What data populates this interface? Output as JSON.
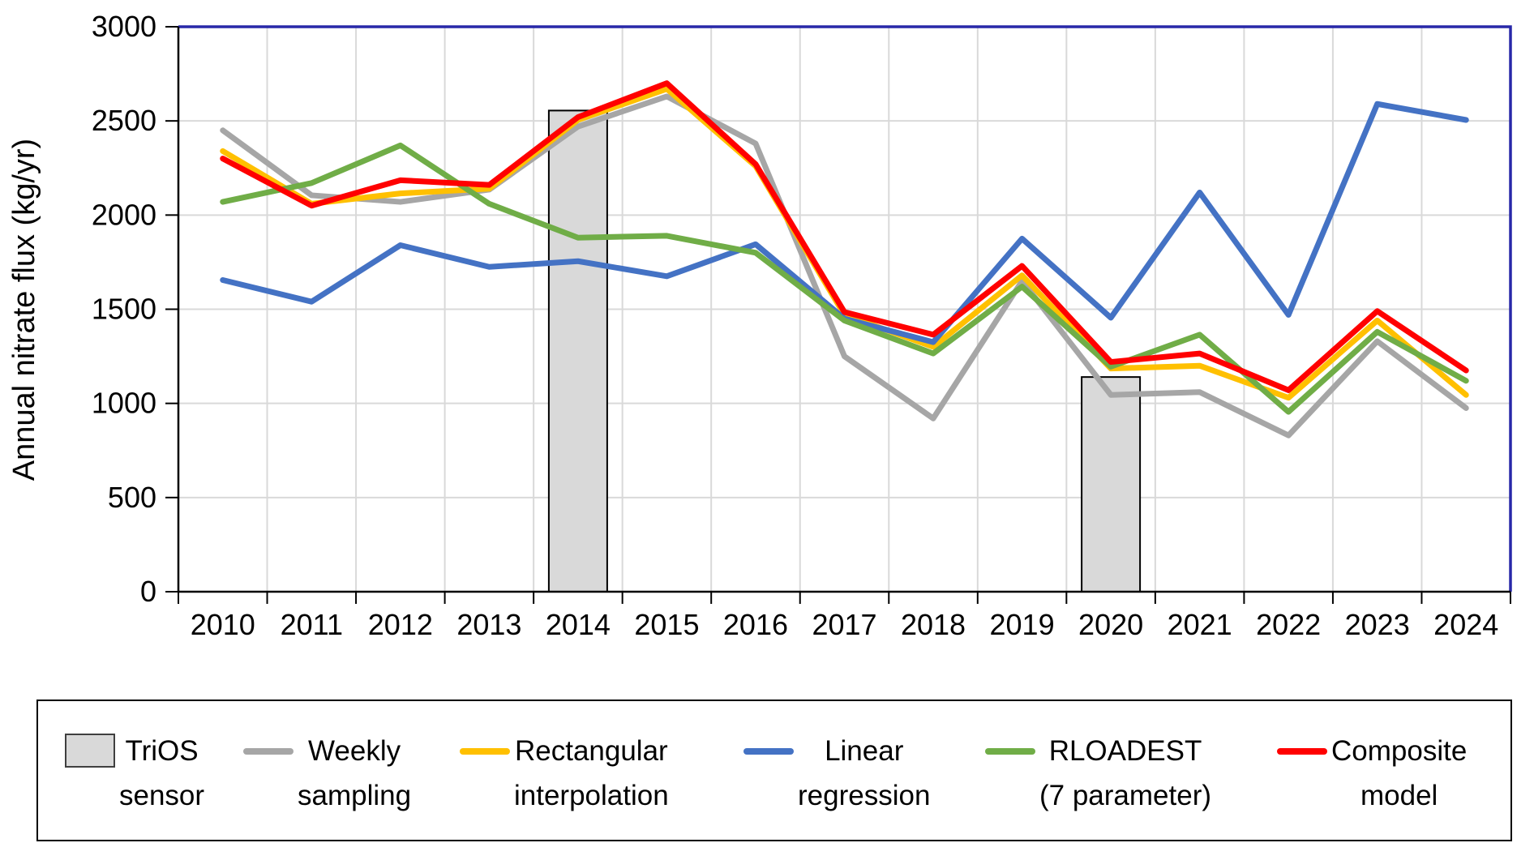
{
  "chart_data": {
    "type": "line",
    "title": "",
    "xlabel": "",
    "ylabel": "Annual nitrate flux (kg/yr)",
    "categories": [
      "2010",
      "2011",
      "2012",
      "2013",
      "2014",
      "2015",
      "2016",
      "2017",
      "2018",
      "2019",
      "2020",
      "2021",
      "2022",
      "2023",
      "2024"
    ],
    "ylim": [
      0,
      3000
    ],
    "ytick_interval": 500,
    "grid": true,
    "legend_position": "bottom",
    "gridline_color": "#D9D9D9",
    "axis_color": "#000000",
    "plot_border_color": "#2828A8",
    "series": [
      {
        "name": "TriOS sensor",
        "type": "bar",
        "color": "#D9D9D9",
        "border_color": "#000000",
        "values": [
          null,
          null,
          null,
          null,
          2555,
          null,
          null,
          null,
          null,
          null,
          1140,
          null,
          null,
          null,
          null
        ]
      },
      {
        "name": "Weekly sampling",
        "type": "line",
        "color": "#A6A6A6",
        "values": [
          2450,
          2105,
          2070,
          2135,
          2470,
          2630,
          2380,
          1250,
          920,
          1650,
          1045,
          1060,
          830,
          1330,
          975
        ]
      },
      {
        "name": "Rectangular interpolation",
        "type": "line",
        "color": "#FFC000",
        "values": [
          2340,
          2060,
          2115,
          2140,
          2505,
          2670,
          2260,
          1470,
          1300,
          1680,
          1185,
          1200,
          1030,
          1440,
          1045
        ]
      },
      {
        "name": "Linear regression",
        "type": "line",
        "color": "#4472C4",
        "values": [
          1655,
          1540,
          1840,
          1725,
          1755,
          1675,
          1845,
          1450,
          1325,
          1875,
          1455,
          2120,
          1470,
          2590,
          2505
        ]
      },
      {
        "name": "RLOADEST (7 parameter)",
        "type": "line",
        "color": "#70AD47",
        "values": [
          2070,
          2170,
          2370,
          2060,
          1880,
          1890,
          1800,
          1440,
          1265,
          1620,
          1195,
          1365,
          955,
          1380,
          1120
        ]
      },
      {
        "name": "Composite model",
        "type": "line",
        "color": "#FF0000",
        "values": [
          2300,
          2050,
          2185,
          2160,
          2520,
          2700,
          2270,
          1485,
          1365,
          1730,
          1220,
          1265,
          1070,
          1490,
          1175
        ]
      }
    ],
    "legend": [
      {
        "name": "TriOS sensor",
        "lines": [
          "TriOS",
          "sensor"
        ],
        "swatch": "bar",
        "color": "#D9D9D9",
        "border_color": "#3f3f3f"
      },
      {
        "name": "Weekly sampling",
        "lines": [
          "Weekly",
          "sampling"
        ],
        "swatch": "line",
        "color": "#A6A6A6"
      },
      {
        "name": "Rectangular interpolation",
        "lines": [
          "Rectangular",
          "interpolation"
        ],
        "swatch": "line",
        "color": "#FFC000"
      },
      {
        "name": "Linear regression",
        "lines": [
          "Linear",
          "regression"
        ],
        "swatch": "line",
        "color": "#4472C4"
      },
      {
        "name": "RLOADEST (7 parameter)",
        "lines": [
          "RLOADEST",
          "(7 parameter)"
        ],
        "swatch": "line",
        "color": "#70AD47"
      },
      {
        "name": "Composite model",
        "lines": [
          "Composite",
          "model"
        ],
        "swatch": "line",
        "color": "#FF0000"
      }
    ]
  }
}
